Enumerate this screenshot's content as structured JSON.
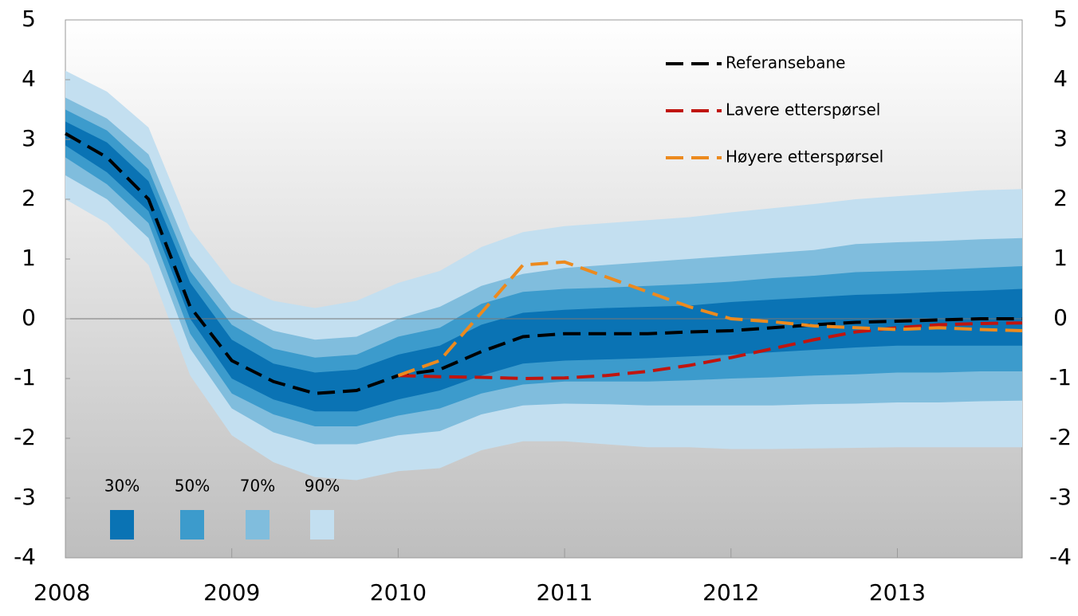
{
  "chart_data": {
    "type": "fan",
    "x": [
      2008,
      2008.25,
      2008.5,
      2008.75,
      2009,
      2009.25,
      2009.5,
      2009.75,
      2010,
      2010.25,
      2010.5,
      2010.75,
      2011,
      2011.25,
      2011.5,
      2011.75,
      2012,
      2012.25,
      2012.5,
      2012.75,
      2013,
      2013.25,
      2013.5,
      2013.75
    ],
    "bands": [
      {
        "name": "90%",
        "color": "#c3dff0",
        "upper": [
          4.15,
          3.8,
          3.2,
          1.5,
          0.6,
          0.3,
          0.18,
          0.3,
          0.6,
          0.8,
          1.2,
          1.45,
          1.55,
          1.6,
          1.65,
          1.7,
          1.78,
          1.85,
          1.92,
          2.0,
          2.05,
          2.1,
          2.15,
          2.17
        ],
        "lower": [
          2.0,
          1.6,
          0.9,
          -0.95,
          -1.95,
          -2.4,
          -2.65,
          -2.7,
          -2.55,
          -2.5,
          -2.2,
          -2.05,
          -2.05,
          -2.1,
          -2.15,
          -2.15,
          -2.18,
          -2.18,
          -2.17,
          -2.16,
          -2.15,
          -2.15,
          -2.15,
          -2.15
        ]
      },
      {
        "name": "70%",
        "color": "#80bddd",
        "upper": [
          3.7,
          3.35,
          2.75,
          1.05,
          0.15,
          -0.2,
          -0.35,
          -0.3,
          0.0,
          0.2,
          0.55,
          0.75,
          0.85,
          0.9,
          0.95,
          1.0,
          1.05,
          1.1,
          1.15,
          1.25,
          1.28,
          1.3,
          1.33,
          1.35
        ],
        "lower": [
          2.4,
          2.0,
          1.35,
          -0.5,
          -1.5,
          -1.9,
          -2.1,
          -2.1,
          -1.95,
          -1.88,
          -1.6,
          -1.45,
          -1.42,
          -1.43,
          -1.45,
          -1.45,
          -1.45,
          -1.45,
          -1.43,
          -1.42,
          -1.4,
          -1.4,
          -1.38,
          -1.37
        ]
      },
      {
        "name": "50%",
        "color": "#3c9bcc",
        "upper": [
          3.5,
          3.15,
          2.5,
          0.8,
          -0.1,
          -0.5,
          -0.65,
          -0.6,
          -0.3,
          -0.15,
          0.25,
          0.45,
          0.5,
          0.52,
          0.55,
          0.58,
          0.62,
          0.68,
          0.72,
          0.78,
          0.8,
          0.82,
          0.85,
          0.88
        ],
        "lower": [
          2.7,
          2.25,
          1.6,
          -0.25,
          -1.25,
          -1.6,
          -1.8,
          -1.8,
          -1.62,
          -1.5,
          -1.25,
          -1.1,
          -1.05,
          -1.05,
          -1.05,
          -1.03,
          -1.0,
          -0.98,
          -0.95,
          -0.93,
          -0.9,
          -0.9,
          -0.88,
          -0.88
        ]
      },
      {
        "name": "30%",
        "color": "#0a73b4",
        "upper": [
          3.3,
          2.95,
          2.3,
          0.6,
          -0.35,
          -0.75,
          -0.9,
          -0.85,
          -0.6,
          -0.45,
          -0.1,
          0.1,
          0.15,
          0.18,
          0.2,
          0.22,
          0.28,
          0.32,
          0.36,
          0.4,
          0.42,
          0.45,
          0.47,
          0.5
        ],
        "lower": [
          2.9,
          2.45,
          1.8,
          0.0,
          -1.0,
          -1.35,
          -1.55,
          -1.55,
          -1.35,
          -1.2,
          -0.95,
          -0.75,
          -0.7,
          -0.68,
          -0.66,
          -0.63,
          -0.6,
          -0.56,
          -0.52,
          -0.48,
          -0.45,
          -0.45,
          -0.45,
          -0.45
        ]
      }
    ],
    "series": [
      {
        "name": "Referansebane",
        "color": "#000000",
        "values": [
          3.1,
          2.7,
          2.0,
          0.2,
          -0.7,
          -1.05,
          -1.25,
          -1.2,
          -0.95,
          -0.85,
          -0.55,
          -0.3,
          -0.25,
          -0.25,
          -0.25,
          -0.22,
          -0.2,
          -0.15,
          -0.1,
          -0.06,
          -0.04,
          -0.02,
          0,
          0
        ]
      },
      {
        "name": "Lavere etterspørsel",
        "color": "#c0150f",
        "values": [
          null,
          null,
          null,
          null,
          null,
          null,
          null,
          null,
          -0.95,
          -0.97,
          -0.98,
          -1.0,
          -0.99,
          -0.95,
          -0.88,
          -0.78,
          -0.65,
          -0.5,
          -0.35,
          -0.22,
          -0.15,
          -0.1,
          -0.08,
          -0.07
        ]
      },
      {
        "name": "Høyere etterspørsel",
        "color": "#ec8a1e",
        "values": [
          null,
          null,
          null,
          null,
          null,
          null,
          null,
          null,
          -0.95,
          -0.7,
          0.1,
          0.9,
          0.95,
          0.7,
          0.45,
          0.2,
          0.0,
          -0.05,
          -0.12,
          -0.15,
          -0.18,
          -0.15,
          -0.18,
          -0.2
        ]
      }
    ],
    "xlim": [
      2008,
      2013.75
    ],
    "xticks": [
      2008,
      2009,
      2010,
      2011,
      2012,
      2013
    ],
    "ylim": [
      -4,
      5
    ],
    "yticks": [
      -4,
      -3,
      -2,
      -1,
      0,
      1,
      2,
      3,
      4,
      5
    ]
  }
}
